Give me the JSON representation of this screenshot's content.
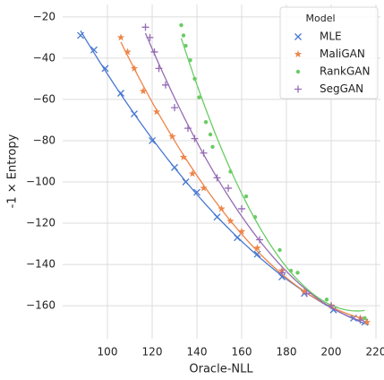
{
  "chart_data": {
    "type": "scatter",
    "xlabel": "Oracle-NLL",
    "ylabel": "-1 × Entropy",
    "xlim": [
      80,
      222
    ],
    "ylim": [
      -176,
      -14
    ],
    "xticks": [
      100,
      120,
      140,
      160,
      180,
      200,
      220
    ],
    "yticks": [
      {
        "value": -20,
        "label": "−20"
      },
      {
        "value": -40,
        "label": "−40"
      },
      {
        "value": -60,
        "label": "−60"
      },
      {
        "value": -80,
        "label": "−80"
      },
      {
        "value": -100,
        "label": "−100"
      },
      {
        "value": -120,
        "label": "−120"
      },
      {
        "value": -140,
        "label": "−140"
      },
      {
        "value": -160,
        "label": "−160"
      }
    ],
    "grid": true,
    "fit_line": true,
    "legend": {
      "title": "Model",
      "position": "upper right"
    },
    "series": [
      {
        "name": "MLE",
        "color": "#4878d0",
        "marker": "x",
        "x": [
          88,
          94,
          99,
          106,
          112,
          120,
          130,
          135,
          140,
          149,
          158,
          167,
          178,
          188,
          201,
          210,
          215
        ],
        "values": [
          -29,
          -36,
          -45,
          -57,
          -67,
          -80,
          -93,
          -100,
          -105,
          -117,
          -127,
          -135,
          -146,
          -154,
          -162,
          -166,
          -168
        ]
      },
      {
        "name": "MaliGAN",
        "color": "#ee854a",
        "marker": "star",
        "x": [
          106,
          109,
          112,
          116,
          122,
          129,
          134,
          138,
          143,
          151,
          155,
          160,
          167,
          178,
          188,
          200,
          213,
          216
        ],
        "values": [
          -30,
          -37,
          -45,
          -56,
          -66,
          -78,
          -88,
          -96,
          -103,
          -113,
          -119,
          -124,
          -132,
          -143,
          -153,
          -160,
          -166,
          -168
        ]
      },
      {
        "name": "RankGAN",
        "color": "#6acc64",
        "marker": "dot",
        "x": [
          133,
          134,
          135,
          137,
          139,
          141,
          144,
          146,
          147,
          155,
          162,
          166,
          177,
          182,
          185,
          198,
          215
        ],
        "values": [
          -24,
          -29,
          -34,
          -41,
          -50,
          -59,
          -71,
          -77,
          -83,
          -95,
          -107,
          -117,
          -133,
          -143,
          -144,
          -157,
          -166
        ]
      },
      {
        "name": "SegGAN",
        "color": "#956cb4",
        "marker": "plus",
        "x": [
          117,
          119,
          121,
          123,
          126,
          130,
          136,
          139,
          143,
          149,
          154,
          160,
          168,
          178,
          189,
          200,
          213
        ],
        "values": [
          -25,
          -30,
          -37,
          -45,
          -53,
          -64,
          -74,
          -79,
          -86,
          -98,
          -103,
          -113,
          -128,
          -144,
          -154,
          -160,
          -167
        ]
      }
    ]
  }
}
